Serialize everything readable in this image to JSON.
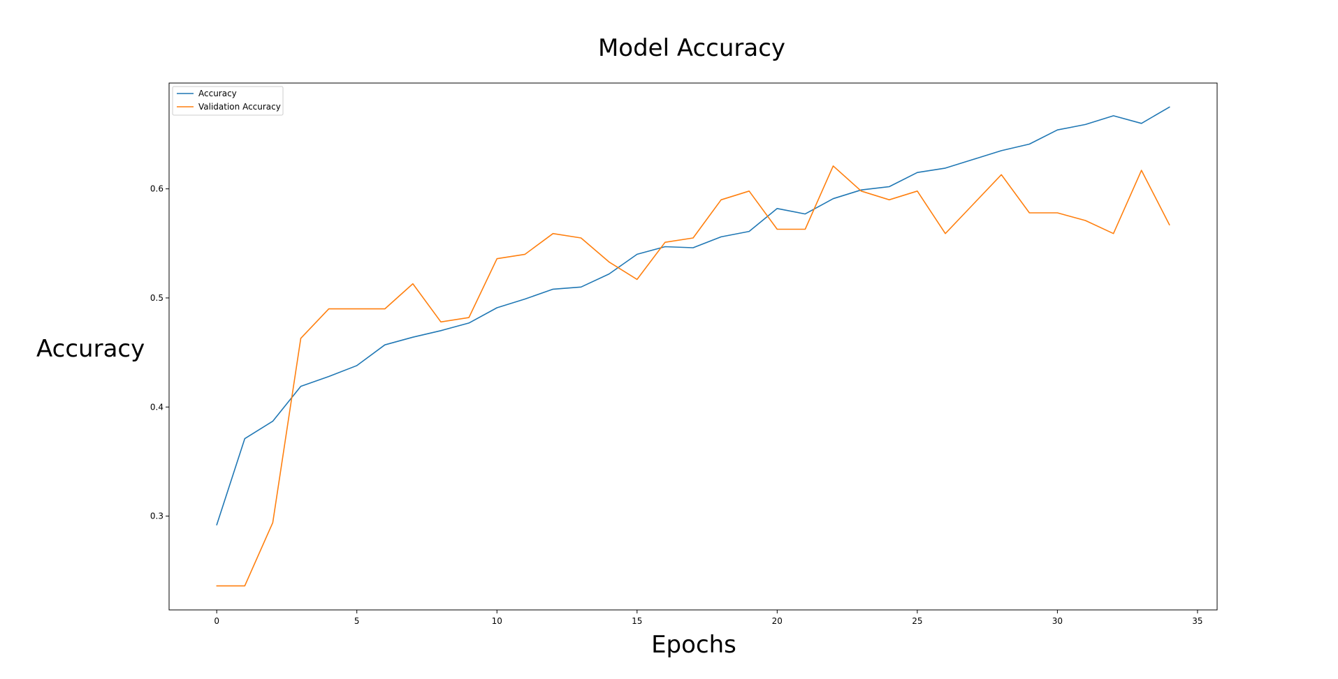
{
  "chart_data": {
    "type": "line",
    "title": "Model Accuracy",
    "xlabel": "Epochs",
    "ylabel": "Accuracy",
    "xlim": [
      -1.7,
      35.7
    ],
    "ylim": [
      0.214,
      0.697
    ],
    "xticks": [
      0,
      5,
      10,
      15,
      20,
      25,
      30,
      35
    ],
    "yticks": [
      0.3,
      0.4,
      0.5,
      0.6
    ],
    "ytick_labels": [
      "0.3",
      "0.4",
      "0.5",
      "0.6"
    ],
    "grid": false,
    "legend_position": "top-left",
    "x": [
      0,
      1,
      2,
      3,
      4,
      5,
      6,
      7,
      8,
      9,
      10,
      11,
      12,
      13,
      14,
      15,
      16,
      17,
      18,
      19,
      20,
      21,
      22,
      23,
      24,
      25,
      26,
      27,
      28,
      29,
      30,
      31,
      32,
      33,
      34
    ],
    "series": [
      {
        "name": "Accuracy",
        "color": "#1f77b4",
        "values": [
          0.292,
          0.371,
          0.387,
          0.419,
          0.428,
          0.438,
          0.457,
          0.464,
          0.47,
          0.477,
          0.491,
          0.499,
          0.508,
          0.51,
          0.522,
          0.54,
          0.547,
          0.546,
          0.556,
          0.561,
          0.582,
          0.577,
          0.591,
          0.599,
          0.602,
          0.615,
          0.619,
          0.627,
          0.635,
          0.641,
          0.654,
          0.659,
          0.667,
          0.66,
          0.675
        ]
      },
      {
        "name": "Validation Accuracy",
        "color": "#ff7f0e",
        "values": [
          0.236,
          0.236,
          0.294,
          0.463,
          0.49,
          0.49,
          0.49,
          0.513,
          0.478,
          0.482,
          0.536,
          0.54,
          0.559,
          0.555,
          0.533,
          0.517,
          0.551,
          0.555,
          0.59,
          0.598,
          0.563,
          0.563,
          0.621,
          0.598,
          0.59,
          0.598,
          0.559,
          0.586,
          0.613,
          0.578,
          0.578,
          0.571,
          0.559,
          0.617,
          0.567
        ]
      }
    ]
  }
}
